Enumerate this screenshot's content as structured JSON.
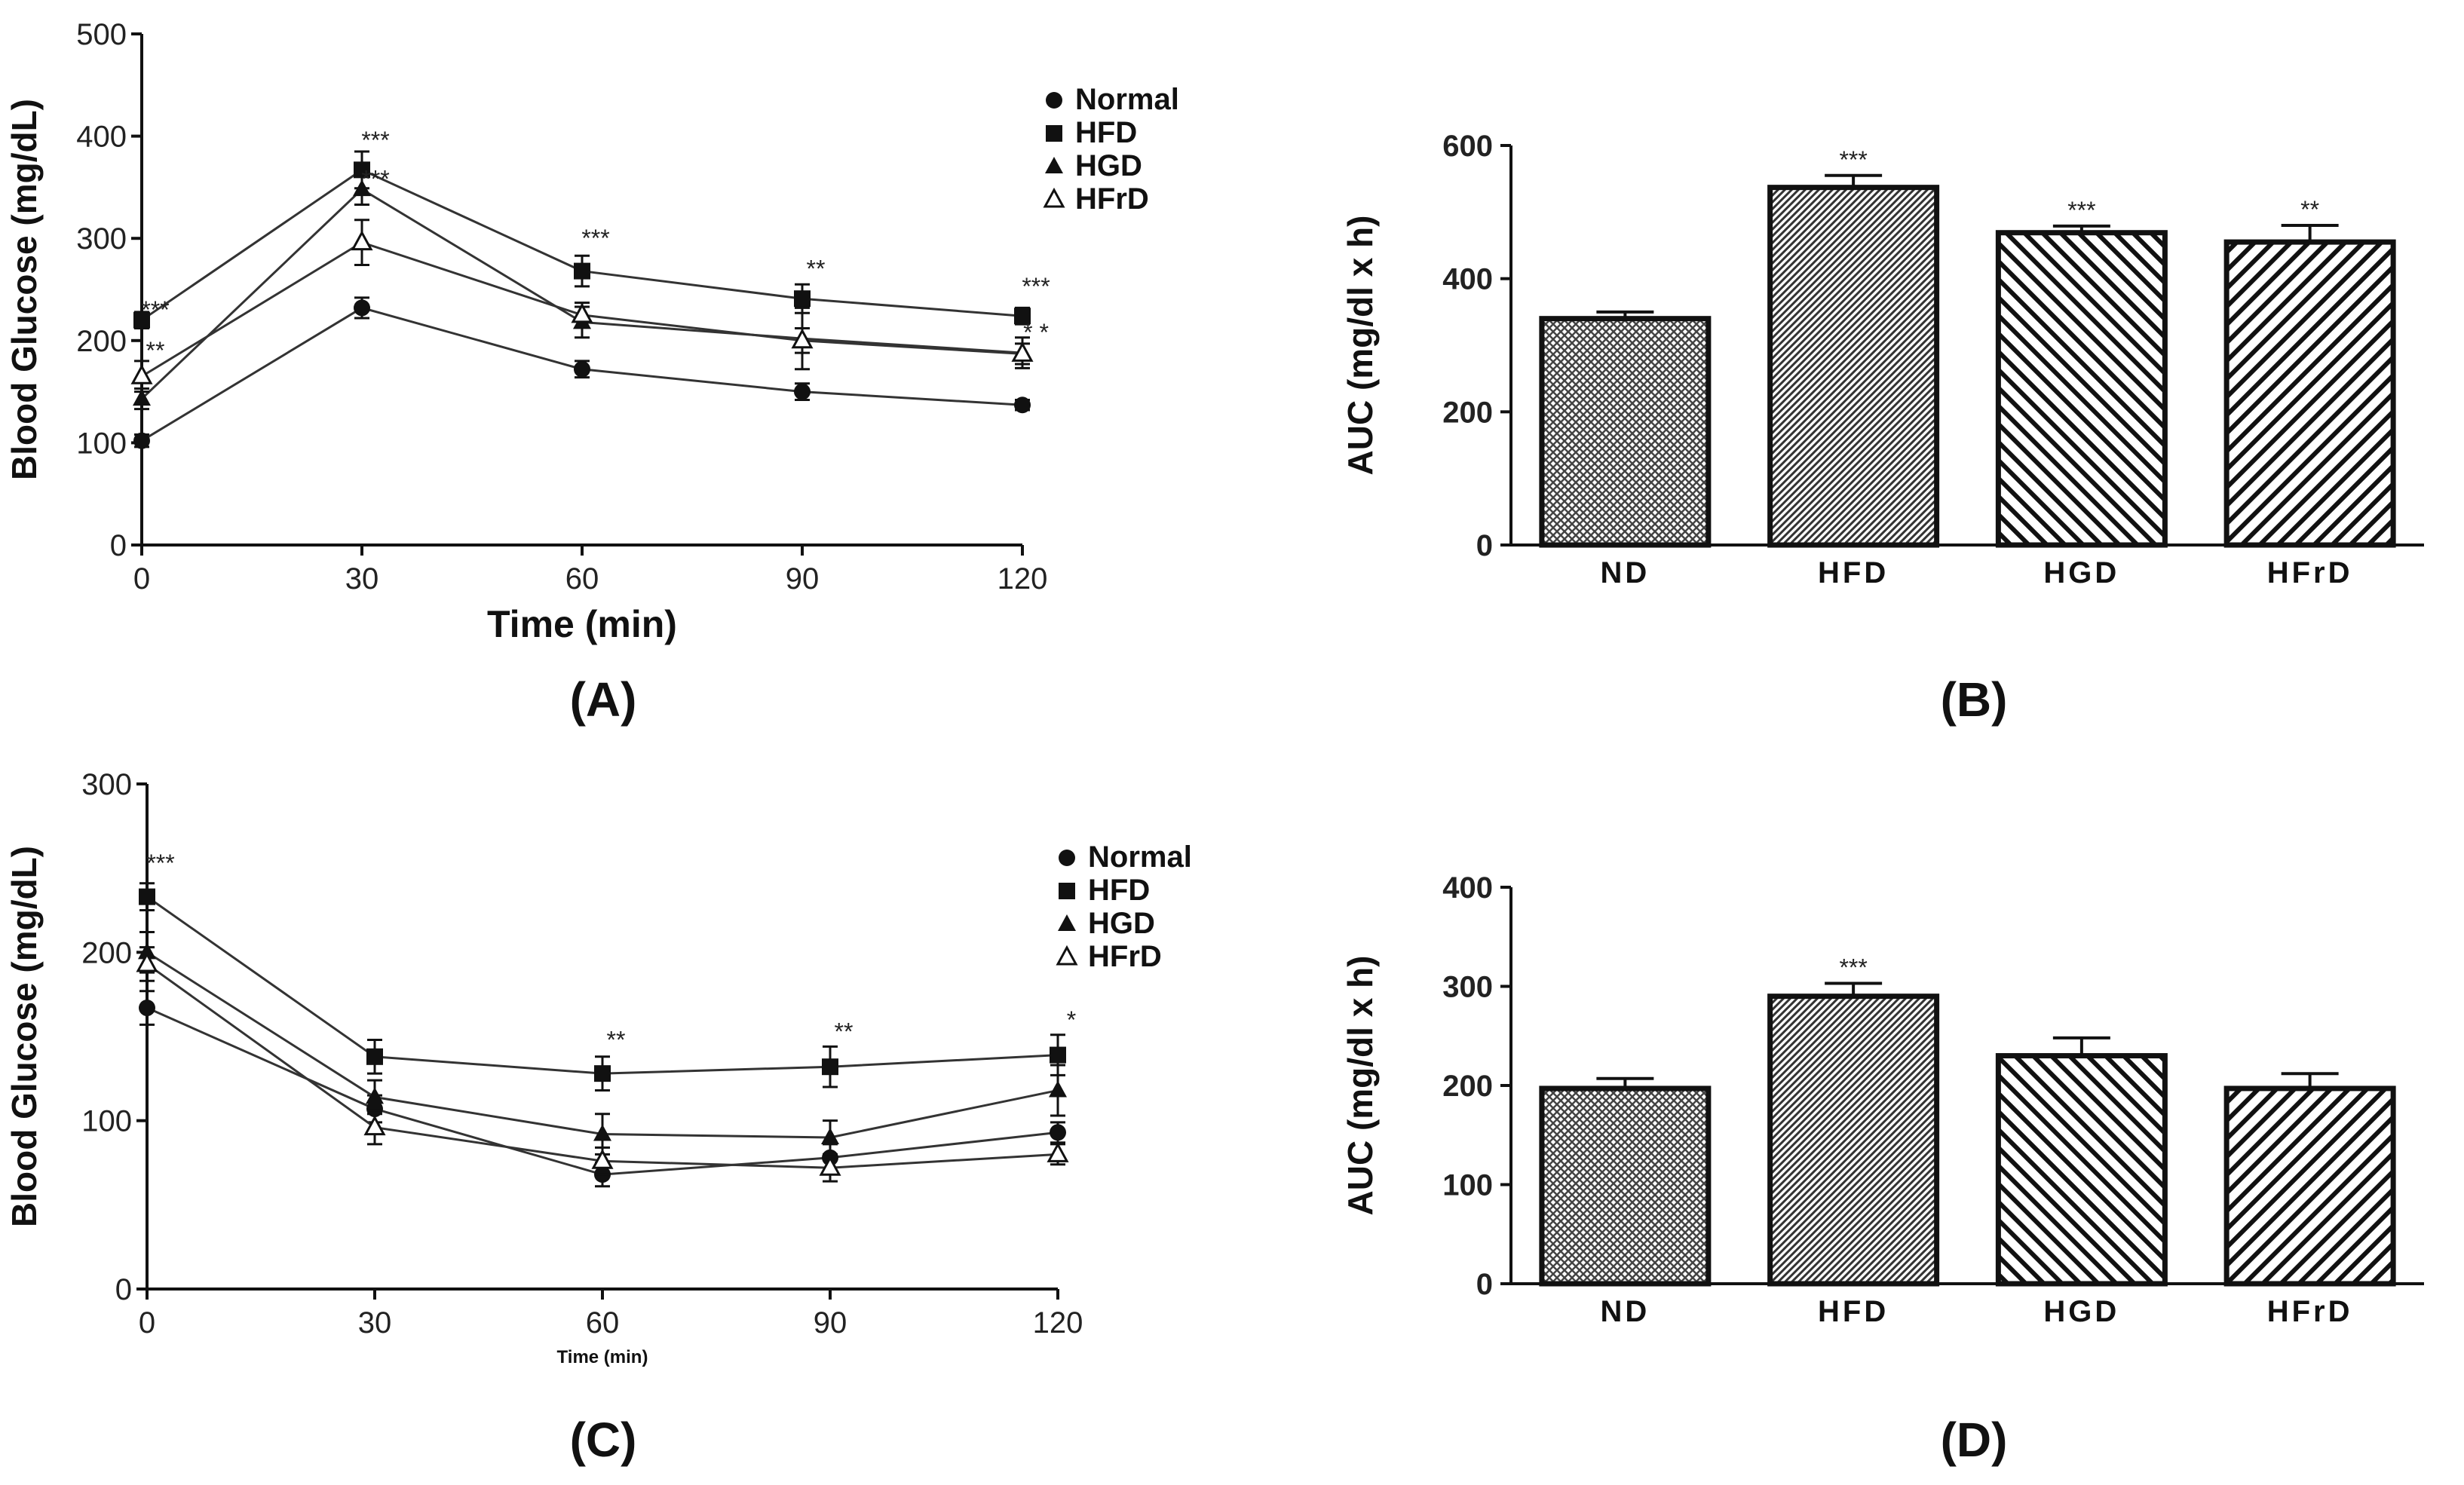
{
  "chart_data": [
    {
      "panel": "(A)",
      "type": "line",
      "xlabel": "Time (min)",
      "ylabel": "Blood Glucose (mg/dL)",
      "x": [
        0,
        30,
        60,
        90,
        120
      ],
      "xticks": [
        "0",
        "30",
        "60",
        "90",
        "120"
      ],
      "ylim": [
        0,
        500
      ],
      "yticks": [
        "0",
        "100",
        "200",
        "300",
        "400",
        "500"
      ],
      "series": [
        {
          "name": "Normal",
          "marker": "circle",
          "values": [
            102,
            232,
            172,
            150,
            137
          ],
          "errors": [
            6,
            10,
            8,
            8,
            5
          ]
        },
        {
          "name": "HFD",
          "marker": "square",
          "values": [
            220,
            367,
            268,
            241,
            224
          ],
          "errors": [
            8,
            18,
            15,
            14,
            8
          ]
        },
        {
          "name": "HGD",
          "marker": "triangle",
          "values": [
            143,
            348,
            218,
            202,
            188
          ],
          "errors": [
            10,
            15,
            15,
            30,
            15
          ]
        },
        {
          "name": "HFrD",
          "marker": "open-triangle",
          "values": [
            165,
            296,
            225,
            200,
            187
          ],
          "errors": [
            15,
            22,
            12,
            12,
            10
          ]
        }
      ],
      "annotations": [
        {
          "x": 0,
          "y": 222,
          "text": "***"
        },
        {
          "x": 0,
          "y": 182,
          "text": "**"
        },
        {
          "x": 30,
          "y": 388,
          "text": "***"
        },
        {
          "x": 30,
          "y": 350,
          "text": "***"
        },
        {
          "x": 60,
          "y": 292,
          "text": "***"
        },
        {
          "x": 90,
          "y": 262,
          "text": "**"
        },
        {
          "x": 120,
          "y": 245,
          "text": "***"
        },
        {
          "x": 120,
          "y": 200,
          "text": "* *"
        }
      ],
      "legend_position": "top-right"
    },
    {
      "panel": "(B)",
      "type": "bar",
      "ylabel": "AUC (mg/dl x h)",
      "categories": [
        "ND",
        "HFD",
        "HGD",
        "HFrD"
      ],
      "values": [
        340,
        537,
        469,
        455
      ],
      "errors": [
        10,
        18,
        10,
        25
      ],
      "significance": [
        "",
        "***",
        "***",
        "**"
      ],
      "patterns": [
        "crosshatch",
        "dense-diagonal",
        "diagonal",
        "diagonal-sparse"
      ],
      "ylim": [
        0,
        600
      ],
      "yticks": [
        "0",
        "200",
        "400",
        "600"
      ]
    },
    {
      "panel": "(C)",
      "type": "line",
      "xlabel": "Time (min)",
      "ylabel": "Blood Glucose (mg/dL)",
      "x": [
        0,
        30,
        60,
        90,
        120
      ],
      "xticks": [
        "0",
        "30",
        "60",
        "90",
        "120"
      ],
      "ylim": [
        0,
        300
      ],
      "yticks": [
        "0",
        "100",
        "200",
        "300"
      ],
      "series": [
        {
          "name": "Normal",
          "marker": "circle",
          "values": [
            167,
            107,
            68,
            78,
            93
          ],
          "errors": [
            10,
            8,
            7,
            8,
            6
          ]
        },
        {
          "name": "HFD",
          "marker": "square",
          "values": [
            233,
            138,
            128,
            132,
            139
          ],
          "errors": [
            8,
            10,
            10,
            12,
            12
          ]
        },
        {
          "name": "HGD",
          "marker": "triangle",
          "values": [
            200,
            114,
            92,
            90,
            118
          ],
          "errors": [
            12,
            10,
            12,
            10,
            15
          ]
        },
        {
          "name": "HFrD",
          "marker": "open-triangle",
          "values": [
            193,
            96,
            76,
            72,
            80
          ],
          "errors": [
            10,
            10,
            8,
            8,
            6
          ]
        }
      ],
      "annotations": [
        {
          "x": 0,
          "y": 248,
          "text": "***"
        },
        {
          "x": 60,
          "y": 143,
          "text": "**"
        },
        {
          "x": 90,
          "y": 148,
          "text": "**"
        },
        {
          "x": 120,
          "y": 155,
          "text": "*"
        }
      ],
      "legend_position": "top-right"
    },
    {
      "panel": "(D)",
      "type": "bar",
      "ylabel": "AUC (mg/dl x h)",
      "categories": [
        "ND",
        "HFD",
        "HGD",
        "HFrD"
      ],
      "values": [
        197,
        290,
        230,
        197
      ],
      "errors": [
        10,
        13,
        18,
        15
      ],
      "significance": [
        "",
        "***",
        "",
        ""
      ],
      "patterns": [
        "crosshatch",
        "dense-diagonal",
        "diagonal",
        "diagonal-sparse"
      ],
      "ylim": [
        0,
        400
      ],
      "yticks": [
        "0",
        "100",
        "200",
        "300",
        "400"
      ]
    }
  ]
}
